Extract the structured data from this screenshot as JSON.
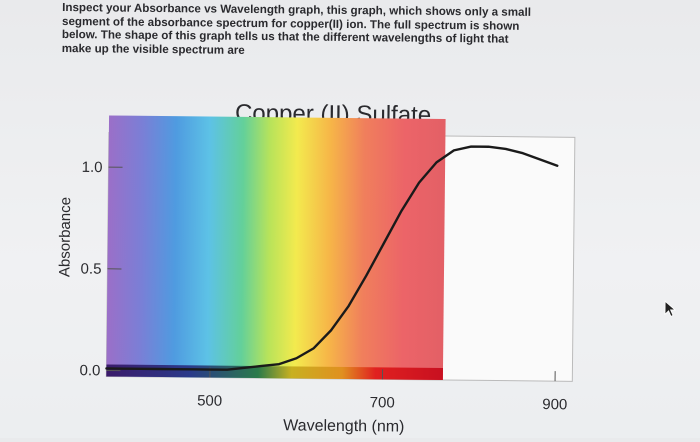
{
  "intro_text": "Inspect your Absorbance vs Wavelength graph, this graph, which shows only a small\nsegment of the absorbance spectrum for copper(II) ion. The full spectrum is shown\nbelow. The shape of this graph tells us that the different wavelengths of light that\nmake up the visible spectrum are",
  "cursor_icon": "mouse-pointer-icon",
  "chart_data": {
    "type": "line",
    "title": "Copper (II) Sulfate",
    "xlabel": "Wavelength (nm)",
    "ylabel": "Absorbance",
    "xlim": [
      380,
      920
    ],
    "ylim": [
      0,
      1.2
    ],
    "x_ticks": [
      "500",
      "700",
      "900"
    ],
    "y_ticks": [
      "0.0",
      "0.5",
      "1.0"
    ],
    "x_tick_values": [
      500,
      700,
      900
    ],
    "y_tick_values": [
      0.0,
      0.5,
      1.0
    ],
    "grid": false,
    "background": "visible-spectrum gradient (violet to red)",
    "series": [
      {
        "color": "#1a1a1a",
        "x": [
          380,
          400,
          420,
          440,
          460,
          480,
          500,
          520,
          540,
          560,
          580,
          600,
          620,
          640,
          660,
          680,
          700,
          720,
          740,
          760,
          780,
          800,
          820,
          840,
          860,
          880,
          900
        ],
        "y": [
          0.01,
          0.01,
          0.01,
          0.01,
          0.01,
          0.01,
          0.01,
          0.01,
          0.02,
          0.03,
          0.04,
          0.07,
          0.12,
          0.21,
          0.33,
          0.48,
          0.64,
          0.8,
          0.94,
          1.04,
          1.1,
          1.12,
          1.12,
          1.11,
          1.09,
          1.06,
          1.03
        ]
      }
    ]
  }
}
